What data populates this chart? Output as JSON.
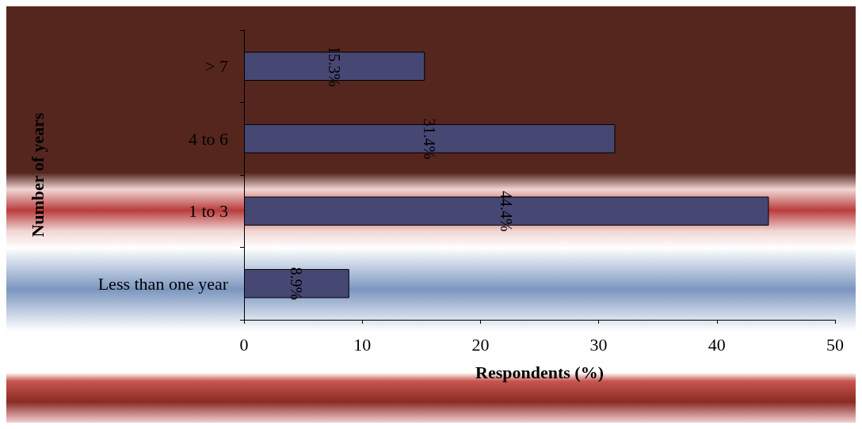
{
  "chart_data": {
    "type": "bar",
    "orientation": "horizontal",
    "xlabel": "Respondents (%)",
    "ylabel": "Number of years",
    "categories": [
      "> 7",
      "4 to 6",
      "1 to 3",
      "Less than one year"
    ],
    "values": [
      15.3,
      31.4,
      44.4,
      8.9
    ],
    "value_labels": [
      "15.3%",
      "31.4%",
      "44.4%",
      "8.9%"
    ],
    "color": "#474774",
    "xlim": [
      0,
      50
    ],
    "xticks": [
      0,
      10,
      20,
      30,
      40,
      50
    ],
    "grid": false
  }
}
